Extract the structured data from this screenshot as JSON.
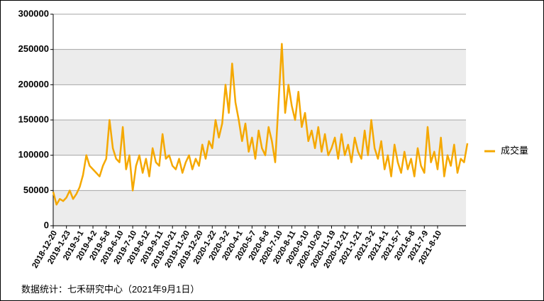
{
  "chart_data": {
    "type": "line",
    "source": "数据统计：七禾研究中心（2021年9月1日）",
    "categories": [
      "2018-12-20",
      null,
      null,
      null,
      "2019-1-23",
      null,
      null,
      null,
      "2019-3-1",
      null,
      null,
      null,
      "2019-4-2",
      null,
      null,
      null,
      "2019-5-8",
      null,
      null,
      null,
      "2019-6-10",
      null,
      null,
      null,
      "2019-7-10",
      null,
      null,
      null,
      "2019-8-12",
      null,
      null,
      null,
      "2019-9-11",
      null,
      null,
      null,
      "2019-10-21",
      null,
      null,
      null,
      "2019-11-20",
      null,
      null,
      null,
      "2019-12-20",
      null,
      null,
      null,
      "2020-1-22",
      null,
      null,
      null,
      "2020-3-2",
      null,
      null,
      null,
      "2020-4-1",
      null,
      null,
      null,
      "2020-5-7",
      null,
      null,
      null,
      "2020-6-8",
      null,
      null,
      null,
      "2020-7-10",
      null,
      null,
      null,
      "2020-8-11",
      null,
      null,
      null,
      "2020-9-10",
      null,
      null,
      null,
      "2020-10-20",
      null,
      null,
      null,
      "2020-11-19",
      null,
      null,
      null,
      "2020-12-21",
      null,
      null,
      null,
      "2021-1-21",
      null,
      null,
      null,
      "2021-3-2",
      null,
      null,
      null,
      "2021-4-1",
      null,
      null,
      null,
      "2021-5-7",
      null,
      null,
      null,
      "2021-6-8",
      null,
      null,
      null,
      "2021-7-9",
      null,
      null,
      null,
      "2021-8-10",
      null,
      null,
      null,
      null,
      null,
      null,
      null,
      null,
      null
    ],
    "series": [
      {
        "name": "成交量",
        "color": "#f5a800",
        "values": [
          48000,
          30000,
          38000,
          35000,
          40000,
          50000,
          38000,
          45000,
          55000,
          72000,
          100000,
          85000,
          80000,
          75000,
          70000,
          85000,
          95000,
          150000,
          110000,
          95000,
          90000,
          140000,
          80000,
          100000,
          50000,
          85000,
          100000,
          75000,
          95000,
          70000,
          110000,
          90000,
          85000,
          130000,
          95000,
          100000,
          85000,
          80000,
          95000,
          75000,
          90000,
          100000,
          80000,
          95000,
          85000,
          115000,
          95000,
          120000,
          110000,
          150000,
          125000,
          145000,
          200000,
          160000,
          230000,
          175000,
          150000,
          120000,
          145000,
          105000,
          125000,
          95000,
          135000,
          110000,
          100000,
          140000,
          120000,
          90000,
          175000,
          258000,
          160000,
          200000,
          170000,
          150000,
          190000,
          140000,
          160000,
          120000,
          135000,
          110000,
          140000,
          105000,
          130000,
          100000,
          110000,
          125000,
          95000,
          130000,
          100000,
          115000,
          90000,
          125000,
          105000,
          95000,
          135000,
          100000,
          150000,
          110000,
          95000,
          120000,
          80000,
          100000,
          70000,
          115000,
          90000,
          75000,
          105000,
          80000,
          95000,
          70000,
          110000,
          85000,
          75000,
          140000,
          90000,
          105000,
          80000,
          125000,
          70000,
          100000,
          85000,
          115000,
          75000,
          95000,
          90000,
          117000
        ]
      }
    ],
    "ylim": [
      0,
      300000
    ],
    "yticks": [
      0,
      50000,
      100000,
      150000,
      200000,
      250000,
      300000
    ],
    "grid": true,
    "legend": "right"
  }
}
